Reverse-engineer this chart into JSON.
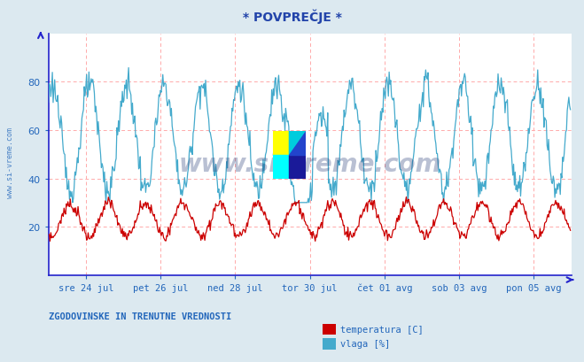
{
  "title": "* POVPREČJE *",
  "background_color": "#dce9f0",
  "plot_bg_color": "#ffffff",
  "grid_color": "#ffaaaa",
  "axis_color": "#2222cc",
  "title_color": "#2244aa",
  "label_color": "#2266bb",
  "temp_color": "#cc0000",
  "vlaga_color": "#44aacc",
  "ylim": [
    0,
    100
  ],
  "yticks": [
    20,
    40,
    60,
    80
  ],
  "xtick_labels": [
    "sre 24 jul",
    "pet 26 jul",
    "ned 28 jul",
    "tor 30 jul",
    "čet 01 avg",
    "sob 03 avg",
    "pon 05 avg"
  ],
  "xtick_positions": [
    48,
    144,
    240,
    336,
    432,
    528,
    624
  ],
  "n_points": 672,
  "watermark": "www.si-vreme.com",
  "watermark_color": "#1a3070",
  "bottom_label": "ZGODOVINSKE IN TRENUTNE VREDNOSTI",
  "legend_items": [
    "temperatura [C]",
    "vlaga [%]"
  ],
  "legend_colors": [
    "#cc0000",
    "#44aacc"
  ]
}
